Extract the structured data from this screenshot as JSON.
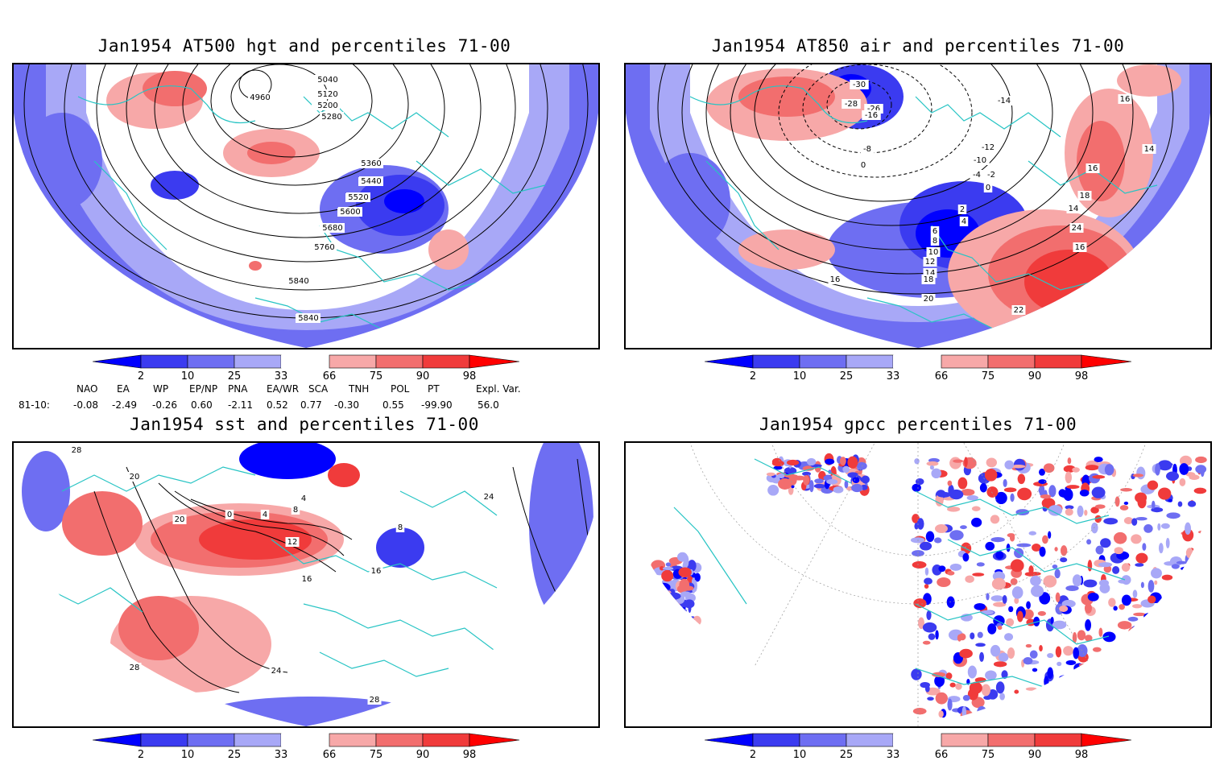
{
  "panels": [
    {
      "title": "Jan1954 AT500 hgt and percentiles 71-00",
      "contour_labels": [
        "5040",
        "4960",
        "5120",
        "5200",
        "5280",
        "5360",
        "5440",
        "5520",
        "5600",
        "5680",
        "5760",
        "5840",
        "5840"
      ]
    },
    {
      "title": "Jan1954 AT850 air and percentiles 71-00",
      "contour_labels": [
        "-30",
        "-28",
        "-26",
        "-16",
        "-8",
        "0",
        "-14",
        "-12",
        "-10",
        "-4",
        "-2",
        "0",
        "2",
        "4",
        "6",
        "8",
        "10",
        "12",
        "14",
        "16",
        "18",
        "20",
        "22",
        "24",
        "16",
        "14",
        "18",
        "16",
        "14",
        "16"
      ]
    },
    {
      "title": "Jan1954 sst and percentiles 71-00",
      "contour_labels": [
        "28",
        "20",
        "20",
        "0",
        "4",
        "8",
        "4",
        "12",
        "16",
        "16",
        "24",
        "24",
        "28",
        "28",
        "8"
      ]
    },
    {
      "title": "Jan1954 gpcc percentiles 71-00",
      "contour_labels": []
    }
  ],
  "colorbar": {
    "ticks": [
      "2",
      "10",
      "25",
      "33",
      "66",
      "75",
      "90",
      "98"
    ],
    "colors": {
      "blue_2": "#0000ff",
      "blue_10": "#3b3bf0",
      "blue_25": "#6e6ef2",
      "blue_33": "#a8a8f7",
      "white": "#ffffff",
      "red_66": "#f7a8a8",
      "red_75": "#f26e6e",
      "red_90": "#f03b3b",
      "red_98": "#ff0000"
    }
  },
  "indices": {
    "headers": [
      "NAO",
      "EA",
      "WP",
      "EP/NP",
      "PNA",
      "EA/WR",
      "SCA",
      "TNH",
      "POL",
      "PT",
      "Expl. Var."
    ],
    "row_label": "81-10:",
    "values": [
      "-0.08",
      "-2.49",
      "-0.26",
      "0.60",
      "-2.11",
      "0.52",
      "0.77",
      "-0.30",
      "0.55",
      "-99.90",
      "56.0"
    ]
  },
  "map_colors": {
    "coast": "#27c4c4",
    "contour": "#000000",
    "grid": "#888888"
  }
}
